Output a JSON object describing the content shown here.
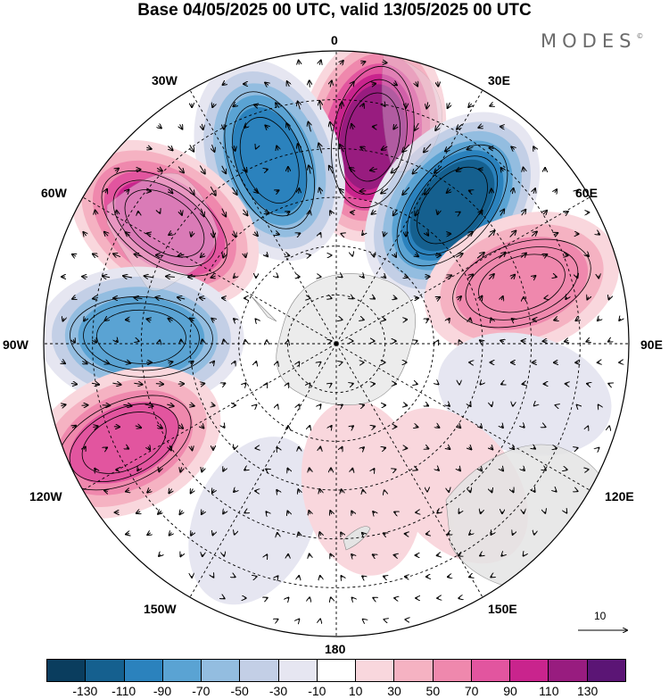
{
  "title": "Base 04/05/2025 00 UTC, valid 13/05/2025 00 UTC",
  "brand": "MODES",
  "brand_mark": "©",
  "longitude_labels": {
    "n0": "0",
    "e30": "30E",
    "e60": "60E",
    "e90": "90E",
    "e120": "120E",
    "e150": "150E",
    "s180": "180",
    "w150": "150W",
    "w120": "120W",
    "w90": "90W",
    "w60": "60W",
    "w30": "30W"
  },
  "vector_scale_label": "10",
  "colorbar": {
    "colors": [
      "#0a3d5e",
      "#15608f",
      "#2b82bd",
      "#5aa3d3",
      "#93bde0",
      "#c3cfe6",
      "#e6e6f1",
      "#ffffff",
      "#f9d7dd",
      "#f5b2c2",
      "#ef88ad",
      "#e2559f",
      "#c9248d",
      "#981c7f",
      "#5b1575"
    ],
    "ticks": [
      "-130",
      "-110",
      "-90",
      "-70",
      "-50",
      "-30",
      "-10",
      "10",
      "30",
      "50",
      "70",
      "90",
      "110",
      "130"
    ]
  },
  "chart_data": {
    "type": "polar-stereographic-anomaly-map",
    "projection": "south-polar",
    "field_units_levels": [
      -130,
      -110,
      -90,
      -70,
      -50,
      -30,
      -10,
      10,
      30,
      50,
      70,
      90,
      110,
      130
    ],
    "anomaly_centers": [
      {
        "lon": 10,
        "lat": -47,
        "value": 120
      },
      {
        "lon": 40,
        "lat": -53,
        "value": -120
      },
      {
        "lon": -20,
        "lat": -50,
        "value": -100
      },
      {
        "lon": -55,
        "lat": -47,
        "value": 100
      },
      {
        "lon": -88,
        "lat": -50,
        "value": -90
      },
      {
        "lon": -115,
        "lat": -42,
        "value": 80
      },
      {
        "lon": 72,
        "lat": -50,
        "value": 70
      },
      {
        "lon": 105,
        "lat": -50,
        "value": -30
      },
      {
        "lon": -155,
        "lat": -50,
        "value": -30
      },
      {
        "lon": 170,
        "lat": -60,
        "value": 30
      },
      {
        "lon": 140,
        "lat": -52,
        "value": 30
      }
    ]
  }
}
